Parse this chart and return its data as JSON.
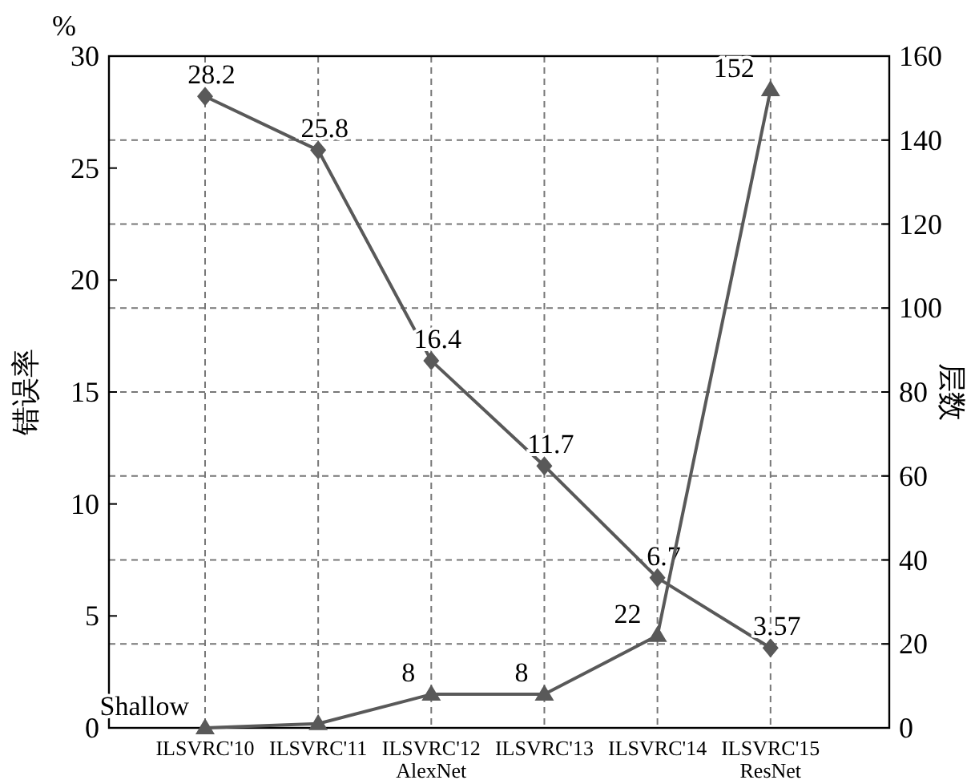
{
  "chart_data": {
    "type": "line",
    "ylabel": "错误率",
    "y2label": "层数",
    "annotations": [
      "%"
    ],
    "categories": [
      "ILSVRC'10",
      "ILSVRC'11",
      "ILSVRC'12\nAlexNet",
      "ILSVRC'13",
      "ILSVRC'14",
      "ILSVRC'15\nResNet"
    ],
    "ylim": [
      0,
      30
    ],
    "yticks": [
      0,
      5,
      10,
      15,
      20,
      25,
      30
    ],
    "y2lim": [
      0,
      160
    ],
    "y2ticks": [
      0,
      20,
      40,
      60,
      80,
      100,
      120,
      140,
      160
    ],
    "grid": true,
    "line_style": "solid",
    "series": [
      {
        "color": "#595959",
        "marker": "diamond",
        "values": [
          28.2,
          25.8,
          16.4,
          11.7,
          6.7,
          3.57
        ],
        "value_labels": [
          "28.2",
          "25.8",
          "16.4",
          "11.7",
          "6.7",
          "3.57"
        ]
      },
      {
        "color": "#595959",
        "marker": "triangle",
        "axis": "y2",
        "values": [
          0,
          1,
          8,
          8,
          22,
          152
        ],
        "value_labels": [
          "Shallow",
          null,
          "8",
          "8",
          "22",
          "152"
        ]
      }
    ]
  }
}
